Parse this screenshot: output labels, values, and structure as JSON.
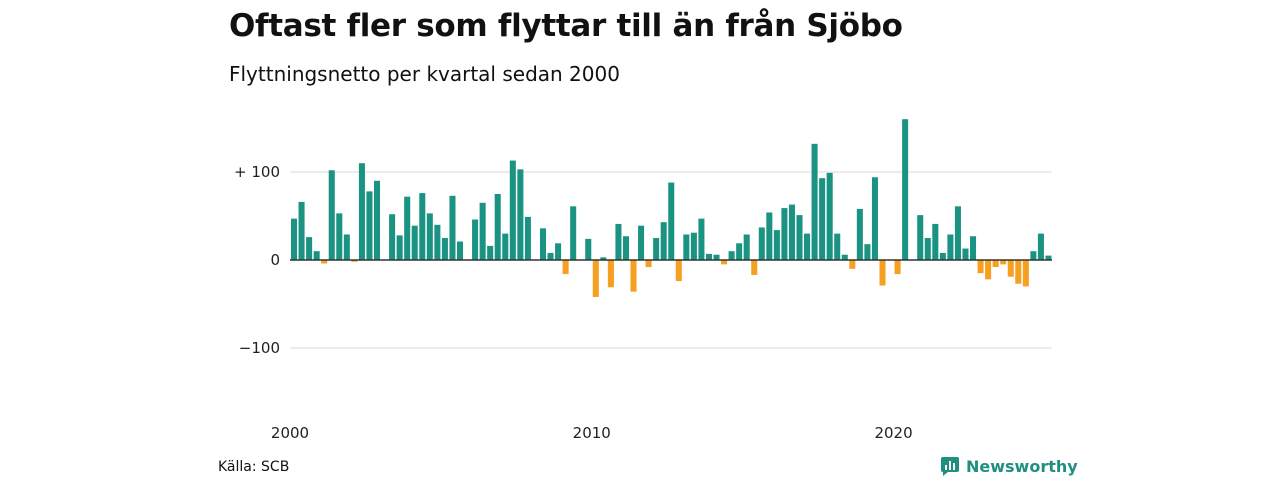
{
  "title": "Oftast fler som flyttar till än från Sjöbo",
  "subtitle": "Flyttningsnetto per kvartal sedan 2000",
  "source": "Källa: SCB",
  "brand": {
    "name": "Newsworthy",
    "icon": "newsworthy-logo-icon",
    "color": "#1f8f80"
  },
  "colors": {
    "positive": "#1a9383",
    "negative": "#f5a020",
    "grid": "#d9d9d9",
    "zero": "#333333"
  },
  "chart_data": {
    "type": "bar",
    "title": "Oftast fler som flyttar till än från Sjöbo",
    "subtitle": "Flyttningsnetto per kvartal sedan 2000",
    "x_start": "2000-Q1",
    "x_tick_labels": [
      "2000",
      "2010",
      "2020"
    ],
    "y_ticks": [
      100,
      0,
      -100
    ],
    "y_tick_labels": [
      "+ 100",
      "0",
      "−100"
    ],
    "ylim": [
      -130,
      170
    ],
    "grid": true,
    "x": [
      "2000-Q1",
      "2000-Q2",
      "2000-Q3",
      "2000-Q4",
      "2001-Q1",
      "2001-Q2",
      "2001-Q3",
      "2001-Q4",
      "2002-Q1",
      "2002-Q2",
      "2002-Q3",
      "2002-Q4",
      "2003-Q1",
      "2003-Q2",
      "2003-Q3",
      "2003-Q4",
      "2004-Q1",
      "2004-Q2",
      "2004-Q3",
      "2004-Q4",
      "2005-Q1",
      "2005-Q2",
      "2005-Q3",
      "2005-Q4",
      "2006-Q1",
      "2006-Q2",
      "2006-Q3",
      "2006-Q4",
      "2007-Q1",
      "2007-Q2",
      "2007-Q3",
      "2007-Q4",
      "2008-Q1",
      "2008-Q2",
      "2008-Q3",
      "2008-Q4",
      "2009-Q1",
      "2009-Q2",
      "2009-Q3",
      "2009-Q4",
      "2010-Q1",
      "2010-Q2",
      "2010-Q3",
      "2010-Q4",
      "2011-Q1",
      "2011-Q2",
      "2011-Q3",
      "2011-Q4",
      "2012-Q1",
      "2012-Q2",
      "2012-Q3",
      "2012-Q4",
      "2013-Q1",
      "2013-Q2",
      "2013-Q3",
      "2013-Q4",
      "2014-Q1",
      "2014-Q2",
      "2014-Q3",
      "2014-Q4",
      "2015-Q1",
      "2015-Q2",
      "2015-Q3",
      "2015-Q4",
      "2016-Q1",
      "2016-Q2",
      "2016-Q3",
      "2016-Q4",
      "2017-Q1",
      "2017-Q2",
      "2017-Q3",
      "2017-Q4",
      "2018-Q1",
      "2018-Q2",
      "2018-Q3",
      "2018-Q4",
      "2019-Q1",
      "2019-Q2",
      "2019-Q3",
      "2019-Q4",
      "2020-Q1",
      "2020-Q2",
      "2020-Q3",
      "2020-Q4",
      "2021-Q1",
      "2021-Q2",
      "2021-Q3",
      "2021-Q4",
      "2022-Q1",
      "2022-Q2",
      "2022-Q3",
      "2022-Q4",
      "2023-Q1",
      "2023-Q2",
      "2023-Q3",
      "2023-Q4",
      "2024-Q1",
      "2024-Q2",
      "2024-Q3",
      "2024-Q4",
      "2025-Q1"
    ],
    "values": [
      47,
      66,
      26,
      10,
      -4,
      102,
      53,
      29,
      -2,
      110,
      78,
      90,
      0,
      52,
      28,
      72,
      39,
      76,
      53,
      40,
      25,
      73,
      21,
      0,
      46,
      65,
      16,
      75,
      30,
      113,
      103,
      49,
      0,
      36,
      8,
      19,
      -16,
      61,
      0,
      24,
      -42,
      3,
      -31,
      41,
      27,
      -36,
      39,
      -8,
      25,
      43,
      88,
      -24,
      29,
      31,
      47,
      7,
      6,
      -5,
      10,
      19,
      29,
      -17,
      37,
      54,
      34,
      59,
      63,
      51,
      30,
      132,
      93,
      99,
      30,
      6,
      -10,
      58,
      18,
      94,
      -29,
      0,
      -16,
      160,
      0,
      51,
      25,
      41,
      8,
      29,
      61,
      13,
      27,
      -15,
      -22,
      -8,
      -5,
      -19,
      -27,
      -30,
      10,
      30,
      5
    ]
  }
}
